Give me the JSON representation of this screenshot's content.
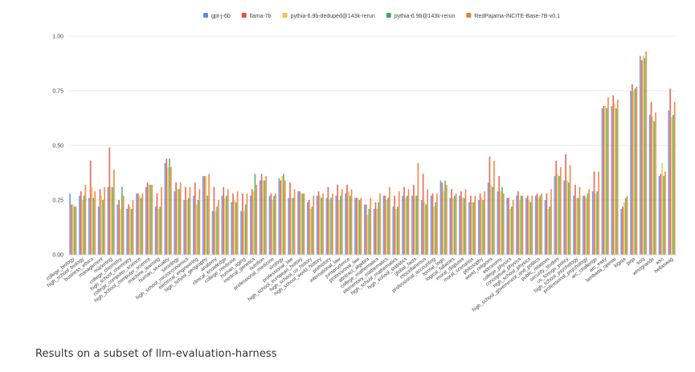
{
  "caption": "Results on a subset of llm-evaluation-harness",
  "chart_data": {
    "type": "bar",
    "ylim": [
      0,
      1
    ],
    "yticks": [
      "0.00",
      "0.25",
      "0.50",
      "0.75",
      "1.00"
    ],
    "ytick_values": [
      0,
      0.25,
      0.5,
      0.75,
      1.0
    ],
    "grid": true,
    "legend_position": "top",
    "colors": [
      "#5b8def",
      "#e8533f",
      "#f6c244",
      "#3fae5b",
      "#f07d2c"
    ],
    "categories": [
      "college_biology",
      "high_school_biology",
      "business_ethics",
      "management",
      "marketing",
      "college_chemistry",
      "high_school_chemistry",
      "college_computer_science",
      "high_school_computer_science",
      "machine_learning",
      "human_sexuality",
      "sociology",
      "high_school_microeconomics",
      "electrical_engineering",
      "high_school_geography",
      "anatomy",
      "clinical_knowledge",
      "college_medicine",
      "human_aging",
      "medical_genetics",
      "nutrition",
      "professional_medicine",
      "virology",
      "professional_law",
      "high_school_european_history",
      "high_school_us_history",
      "high_school_world_history",
      "prehistory",
      "international_law",
      "jurisprudence",
      "professional_law",
      "abstract_algebra",
      "college_mathematics",
      "elementary_mathematics",
      "high_school_mathematics",
      "high_school_statistics",
      "global_facts",
      "miscellaneous",
      "professional_accounting",
      "formal_logic",
      "logical_fallacies",
      "moral_disputes",
      "moral_scenarios",
      "philosophy",
      "world_religions",
      "astronomy",
      "college_physics",
      "conceptual_physics",
      "high_school_physics",
      "high_school_government_and_politics",
      "public_relations",
      "security_studies",
      "us_foreign_policy",
      "high_school_psychology",
      "professional_psychology",
      "arc_challenge",
      "arc_easy",
      "lambada_openai",
      "logiqa",
      "piqa",
      "sciq",
      "winogrande",
      "wsc",
      "hellaswag"
    ],
    "series": [
      {
        "name": "gpt-j-6b",
        "values": [
          0.28,
          0.27,
          0.26,
          0.22,
          0.31,
          0.23,
          0.21,
          0.28,
          0.31,
          0.22,
          0.42,
          0.29,
          0.25,
          0.27,
          0.36,
          0.2,
          0.27,
          0.24,
          0.2,
          0.27,
          0.34,
          0.27,
          0.35,
          0.26,
          0.29,
          0.24,
          0.27,
          0.26,
          0.27,
          0.28,
          0.26,
          0.23,
          0.21,
          0.27,
          0.22,
          0.27,
          0.27,
          0.25,
          0.27,
          0.34,
          0.26,
          0.27,
          0.24,
          0.25,
          0.33,
          0.29,
          0.26,
          0.27,
          0.26,
          0.27,
          0.25,
          0.36,
          0.34,
          0.27,
          0.27,
          0.29,
          0.67,
          0.68,
          0.21,
          0.75,
          0.91,
          0.64,
          0.36,
          0.66
        ]
      },
      {
        "name": "llama-7b",
        "values": [
          0.23,
          0.29,
          0.43,
          0.3,
          0.49,
          0.25,
          0.23,
          0.28,
          0.33,
          0.28,
          0.44,
          0.33,
          0.31,
          0.33,
          0.36,
          0.31,
          0.31,
          0.28,
          0.28,
          0.3,
          0.37,
          0.28,
          0.34,
          0.33,
          0.29,
          0.25,
          0.29,
          0.31,
          0.32,
          0.32,
          0.26,
          0.23,
          0.24,
          0.27,
          0.27,
          0.31,
          0.32,
          0.37,
          0.28,
          0.33,
          0.3,
          0.29,
          0.27,
          0.28,
          0.45,
          0.36,
          0.26,
          0.29,
          0.27,
          0.28,
          0.28,
          0.43,
          0.46,
          0.32,
          0.27,
          0.38,
          0.68,
          0.73,
          0.22,
          0.78,
          0.89,
          0.7,
          0.37,
          0.76
        ]
      },
      {
        "name": "pythia-6.9b-deduped@143k-rerun",
        "values": [
          0.23,
          0.25,
          0.31,
          0.27,
          0.31,
          0.21,
          0.22,
          0.27,
          0.32,
          0.21,
          0.4,
          0.3,
          0.25,
          0.23,
          0.36,
          0.2,
          0.26,
          0.25,
          0.2,
          0.29,
          0.34,
          0.25,
          0.36,
          0.26,
          0.28,
          0.21,
          0.27,
          0.25,
          0.25,
          0.29,
          0.26,
          0.18,
          0.21,
          0.25,
          0.21,
          0.26,
          0.27,
          0.24,
          0.22,
          0.29,
          0.26,
          0.26,
          0.24,
          0.26,
          0.32,
          0.29,
          0.21,
          0.25,
          0.25,
          0.26,
          0.21,
          0.37,
          0.34,
          0.26,
          0.26,
          0.28,
          0.68,
          0.69,
          0.24,
          0.75,
          0.91,
          0.63,
          0.42,
          0.63
        ]
      },
      {
        "name": "pythia-6.9b@143k-rerun",
        "values": [
          0.22,
          0.27,
          0.26,
          0.25,
          0.31,
          0.31,
          0.21,
          0.26,
          0.32,
          0.22,
          0.44,
          0.3,
          0.26,
          0.25,
          0.27,
          0.22,
          0.27,
          0.24,
          0.23,
          0.37,
          0.34,
          0.27,
          0.37,
          0.26,
          0.28,
          0.22,
          0.26,
          0.26,
          0.27,
          0.27,
          0.25,
          0.21,
          0.24,
          0.26,
          0.22,
          0.27,
          0.27,
          0.23,
          0.24,
          0.34,
          0.27,
          0.26,
          0.24,
          0.25,
          0.31,
          0.31,
          0.22,
          0.27,
          0.24,
          0.27,
          0.22,
          0.36,
          0.33,
          0.26,
          0.28,
          0.29,
          0.67,
          0.67,
          0.26,
          0.76,
          0.9,
          0.61,
          0.36,
          0.64
        ]
      },
      {
        "name": "RedPajama-INCITE-Base-7B-v0.1",
        "values": [
          0.22,
          0.32,
          0.29,
          0.31,
          0.39,
          0.27,
          0.25,
          0.28,
          0.32,
          0.31,
          0.4,
          0.33,
          0.31,
          0.3,
          0.37,
          0.25,
          0.3,
          0.29,
          0.28,
          0.32,
          0.36,
          0.28,
          0.34,
          0.3,
          0.28,
          0.27,
          0.28,
          0.28,
          0.3,
          0.3,
          0.26,
          0.26,
          0.28,
          0.31,
          0.29,
          0.3,
          0.42,
          0.3,
          0.28,
          0.32,
          0.28,
          0.3,
          0.27,
          0.29,
          0.43,
          0.28,
          0.25,
          0.27,
          0.27,
          0.28,
          0.3,
          0.4,
          0.41,
          0.31,
          0.3,
          0.38,
          0.72,
          0.71,
          0.27,
          0.77,
          0.93,
          0.65,
          0.38,
          0.7
        ]
      }
    ]
  }
}
